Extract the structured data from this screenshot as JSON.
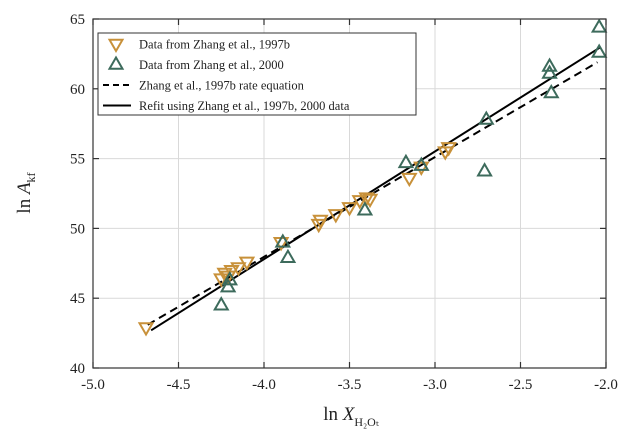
{
  "chart_data": {
    "type": "scatter",
    "xlim": [
      -5.0,
      -2.0
    ],
    "ylim": [
      40,
      65
    ],
    "x_ticks": [
      -5.0,
      -4.5,
      -4.0,
      -3.5,
      -3.0,
      -2.5,
      -2.0
    ],
    "x_tick_labels": [
      "-5.0",
      "-4.5",
      "-4.0",
      "-3.5",
      "-3.0",
      "-2.5",
      "-2.0"
    ],
    "y_ticks": [
      40,
      45,
      50,
      55,
      60,
      65
    ],
    "y_tick_labels": [
      "40",
      "45",
      "50",
      "55",
      "60",
      "65"
    ],
    "grid": true,
    "xlabel": {
      "prefix": "ln ",
      "var": "X",
      "sub": "H₂Oₜ"
    },
    "ylabel": {
      "prefix": "ln ",
      "var": "A",
      "sub": "kf"
    },
    "legend_position": "top-left",
    "series": [
      {
        "name": "Data from Zhang et al., 1997b",
        "kind": "marker",
        "marker": "triangle-down",
        "color": "#c8913a",
        "points": [
          [
            -4.69,
            42.9
          ],
          [
            -4.25,
            46.4
          ],
          [
            -4.23,
            46.8
          ],
          [
            -4.21,
            46.6
          ],
          [
            -4.19,
            47.0
          ],
          [
            -4.15,
            47.2
          ],
          [
            -4.1,
            47.6
          ],
          [
            -3.9,
            49.0
          ],
          [
            -3.68,
            50.3
          ],
          [
            -3.67,
            50.6
          ],
          [
            -3.58,
            51.0
          ],
          [
            -3.5,
            51.5
          ],
          [
            -3.44,
            52.0
          ],
          [
            -3.4,
            52.2
          ],
          [
            -3.38,
            52.1
          ],
          [
            -3.15,
            53.6
          ],
          [
            -3.08,
            54.4
          ],
          [
            -2.94,
            55.5
          ],
          [
            -2.92,
            55.8
          ]
        ]
      },
      {
        "name": "Data from Zhang et al., 2000",
        "kind": "marker",
        "marker": "triangle-up",
        "color": "#3d6b5c",
        "points": [
          [
            -4.25,
            44.5
          ],
          [
            -4.21,
            45.8
          ],
          [
            -4.2,
            46.3
          ],
          [
            -3.89,
            49.0
          ],
          [
            -3.86,
            47.9
          ],
          [
            -3.41,
            51.3
          ],
          [
            -3.17,
            54.7
          ],
          [
            -3.08,
            54.5
          ],
          [
            -2.71,
            54.1
          ],
          [
            -2.7,
            57.8
          ],
          [
            -2.33,
            61.6
          ],
          [
            -2.33,
            61.1
          ],
          [
            -2.32,
            59.7
          ],
          [
            -2.04,
            64.4
          ],
          [
            -2.04,
            62.6
          ]
        ]
      },
      {
        "name": "Zhang et al., 1997b rate equation",
        "kind": "line",
        "style": "dashed",
        "color": "#000000",
        "points": [
          [
            -4.68,
            43.1
          ],
          [
            -2.05,
            61.9
          ]
        ]
      },
      {
        "name": "Refit using Zhang et al., 1997b, 2000 data",
        "kind": "line",
        "style": "solid",
        "color": "#000000",
        "points": [
          [
            -4.66,
            42.7
          ],
          [
            -2.03,
            63.0
          ]
        ]
      }
    ]
  }
}
